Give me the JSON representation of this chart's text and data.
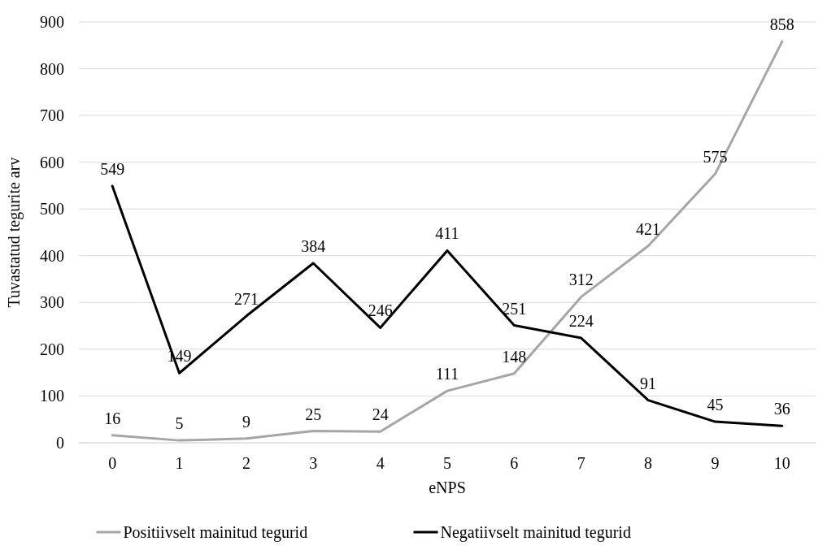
{
  "chart_data": {
    "type": "line",
    "xlabel": "eNPS",
    "ylabel": "Tuvastatud tegurite arv",
    "categories": [
      "0",
      "1",
      "2",
      "3",
      "4",
      "5",
      "6",
      "7",
      "8",
      "9",
      "10"
    ],
    "series": [
      {
        "name": "Positiivselt mainitud tegurid",
        "color": "#a6a6a6",
        "values": [
          16,
          5,
          9,
          25,
          24,
          111,
          148,
          312,
          421,
          575,
          858
        ]
      },
      {
        "name": "Negatiivselt mainitud tegurid",
        "color": "#000000",
        "values": [
          549,
          149,
          271,
          384,
          246,
          411,
          251,
          224,
          91,
          45,
          36
        ]
      }
    ],
    "ylim": [
      0,
      900
    ],
    "yticks": [
      0,
      100,
      200,
      300,
      400,
      500,
      600,
      700,
      800,
      900
    ],
    "grid": "y",
    "legend": "bottom",
    "data_labels": true,
    "marker": "none",
    "line_style": "solid"
  }
}
